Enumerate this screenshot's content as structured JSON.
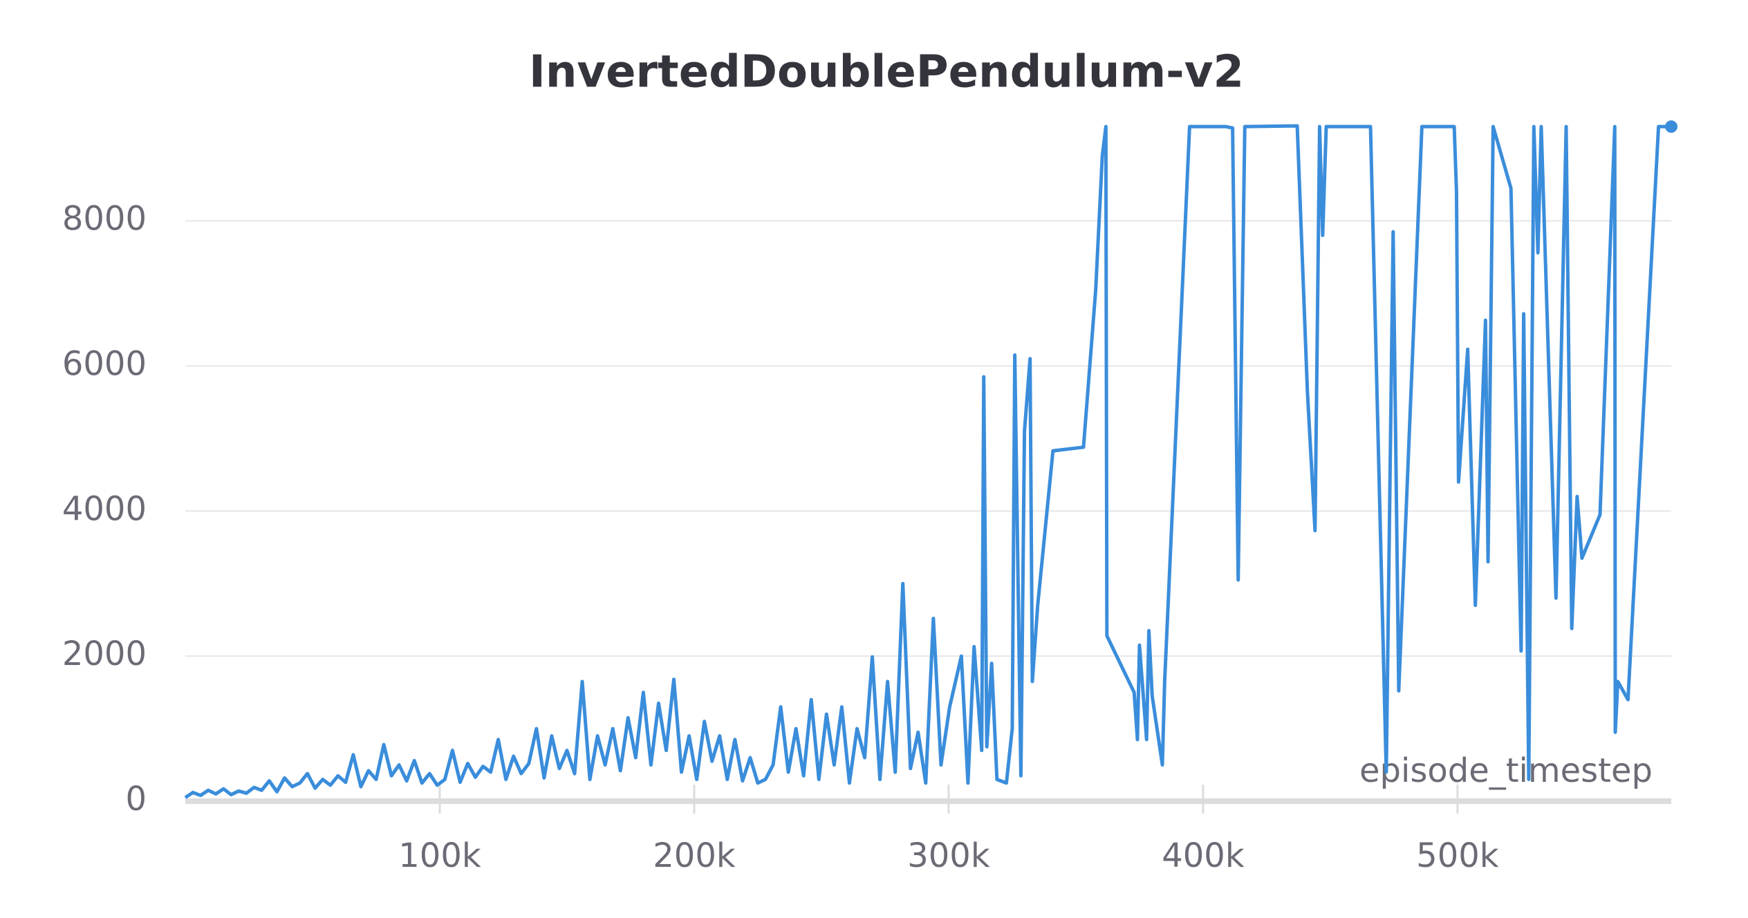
{
  "chart_data": {
    "type": "line",
    "title": "InvertedDoublePendulum-v2",
    "x_label": "episode_timestep",
    "x": [
      0,
      3000,
      6000,
      9000,
      12000,
      15000,
      18000,
      21000,
      24000,
      27000,
      30000,
      33000,
      36000,
      39000,
      42000,
      45000,
      48000,
      51000,
      54000,
      57000,
      60000,
      63000,
      66000,
      69000,
      72000,
      75000,
      78000,
      81000,
      84000,
      87000,
      90000,
      93000,
      96000,
      99000,
      102000,
      105000,
      108000,
      111000,
      114000,
      117000,
      120000,
      123000,
      126000,
      129000,
      132000,
      135000,
      138000,
      141000,
      144000,
      147000,
      150000,
      153000,
      156000,
      159000,
      162000,
      165000,
      168000,
      171000,
      174000,
      177000,
      180000,
      183000,
      186000,
      189000,
      192000,
      195000,
      198000,
      201000,
      204000,
      207000,
      210000,
      213000,
      216000,
      219000,
      222000,
      225000,
      228000,
      231000,
      234000,
      237000,
      240000,
      243000,
      246000,
      249000,
      252000,
      255000,
      258000,
      261000,
      264000,
      267000,
      270000,
      273000,
      276000,
      279000,
      282000,
      285000,
      288000,
      291000,
      294000,
      297000,
      300400,
      305000,
      307600,
      310000,
      313000,
      313800,
      315000,
      316900,
      319000,
      322700,
      325000,
      326000,
      328400,
      329800,
      332000,
      332900,
      335000,
      341000,
      353000,
      357800,
      360400,
      361800,
      362200,
      372900,
      374200,
      375000,
      377800,
      378700,
      380000,
      384000,
      384900,
      394700,
      409000,
      411600,
      413800,
      416400,
      437000,
      441000,
      444000,
      445800,
      447000,
      448400,
      465800,
      472000,
      474700,
      476900,
      486000,
      498700,
      499600,
      500400,
      504000,
      507000,
      511000,
      512000,
      514000,
      521000,
      525000,
      526000,
      528000,
      530000,
      531600,
      532900,
      538700,
      542700,
      544900,
      547000,
      548900,
      556000,
      561800,
      562000,
      563000,
      567000,
      579000,
      584000
    ],
    "values": [
      50,
      120,
      80,
      150,
      100,
      170,
      90,
      140,
      110,
      190,
      150,
      280,
      130,
      320,
      200,
      250,
      380,
      180,
      300,
      220,
      350,
      260,
      640,
      200,
      420,
      300,
      780,
      350,
      500,
      280,
      560,
      250,
      380,
      220,
      300,
      700,
      260,
      520,
      330,
      480,
      400,
      850,
      300,
      620,
      380,
      520,
      1000,
      320,
      900,
      450,
      700,
      380,
      1650,
      300,
      900,
      500,
      1000,
      420,
      1150,
      600,
      1500,
      500,
      1350,
      700,
      1680,
      400,
      900,
      300,
      1100,
      550,
      900,
      300,
      850,
      280,
      600,
      250,
      300,
      500,
      1300,
      400,
      1000,
      350,
      1400,
      300,
      1200,
      500,
      1300,
      250,
      1000,
      600,
      1990,
      300,
      1650,
      400,
      3000,
      450,
      950,
      250,
      2520,
      500,
      1300,
      2000,
      250,
      2130,
      700,
      5850,
      750,
      1900,
      300,
      250,
      1000,
      6150,
      350,
      5100,
      6100,
      1650,
      2700,
      4830,
      4880,
      7050,
      8900,
      9300,
      2280,
      1500,
      850,
      2150,
      850,
      2350,
      1450,
      500,
      1650,
      9300,
      9300,
      9280,
      3050,
      9300,
      9310,
      5650,
      3730,
      9300,
      7800,
      9300,
      9300,
      400,
      7850,
      1520,
      9300,
      9300,
      8400,
      4400,
      6230,
      2700,
      6630,
      3300,
      9300,
      8450,
      2070,
      6720,
      300,
      9300,
      7560,
      9300,
      2800,
      9300,
      2380,
      4200,
      3350,
      3950,
      9300,
      950,
      1650,
      1400,
      9300,
      9300
    ],
    "color": "#3a8ddb",
    "xlim": [
      0,
      584000
    ],
    "ylim": [
      0,
      9330
    ],
    "xticks": [
      {
        "value": 100000,
        "label": "100k"
      },
      {
        "value": 200000,
        "label": "200k"
      },
      {
        "value": 300000,
        "label": "300k"
      },
      {
        "value": 400000,
        "label": "400k"
      },
      {
        "value": 500000,
        "label": "500k"
      }
    ],
    "yticks": [
      0,
      2000,
      4000,
      6000,
      8000
    ],
    "grid": true
  }
}
